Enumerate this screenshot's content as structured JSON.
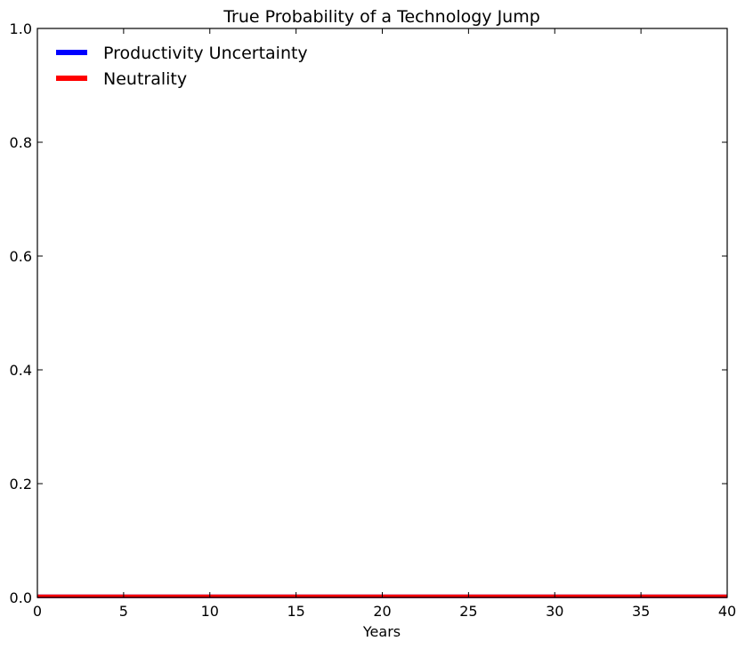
{
  "chart_data": {
    "type": "line",
    "title": "True Probability of a Technology Jump",
    "xlabel": "Years",
    "ylabel": "",
    "xlim": [
      0,
      40
    ],
    "ylim": [
      0,
      1.0
    ],
    "xticks": [
      "0",
      "5",
      "10",
      "15",
      "20",
      "25",
      "30",
      "35",
      "40"
    ],
    "yticks": [
      "0.0",
      "0.2",
      "0.4",
      "0.6",
      "0.8",
      "1.0"
    ],
    "grid": false,
    "legend_position": "top-left",
    "x": [
      0,
      5,
      10,
      15,
      20,
      25,
      30,
      35,
      40
    ],
    "series": [
      {
        "name": "Productivity Uncertainty",
        "color": "#0000ff",
        "values": [
          0.002,
          0.002,
          0.002,
          0.002,
          0.002,
          0.002,
          0.002,
          0.002,
          0.002
        ]
      },
      {
        "name": "Neutrality",
        "color": "#ff0000",
        "values": [
          0.002,
          0.002,
          0.002,
          0.002,
          0.002,
          0.002,
          0.002,
          0.002,
          0.002
        ]
      }
    ]
  }
}
